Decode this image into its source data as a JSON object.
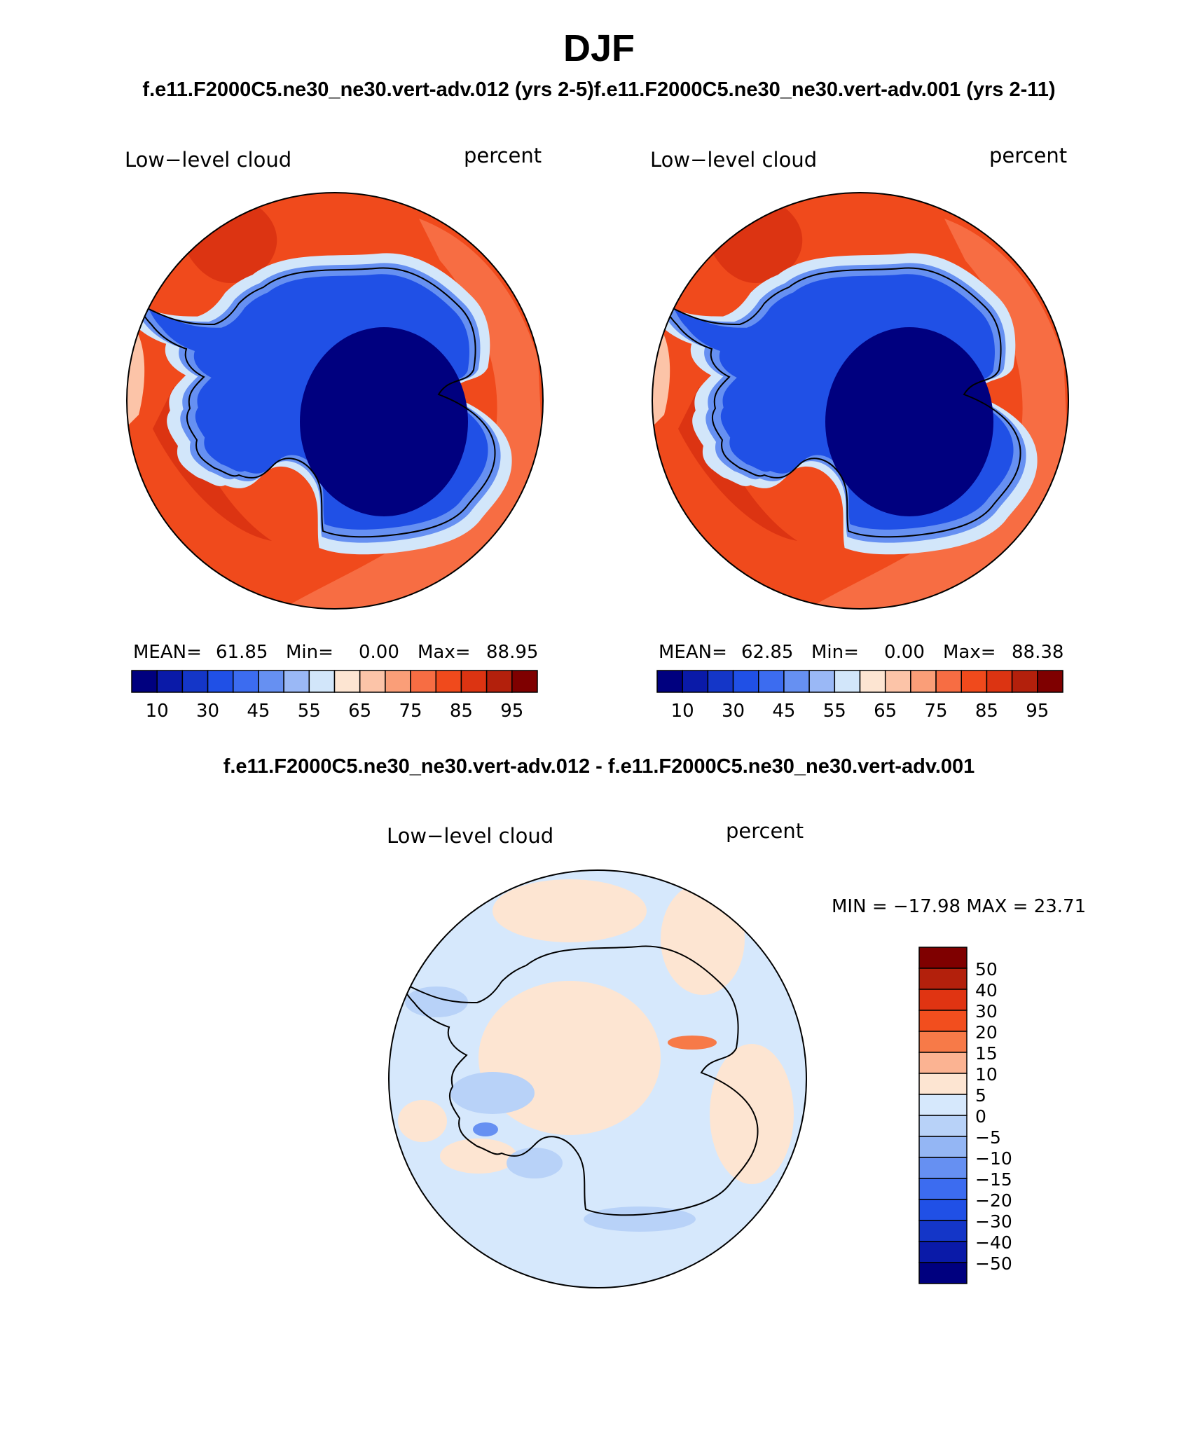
{
  "figure": {
    "title": "DJF",
    "subtitle": "f.e11.F2000C5.ne30_ne30.vert-adv.012 (yrs 2-5)f.e11.F2000C5.ne30_ne30.vert-adv.001 (yrs 2-11)",
    "difference_title": "f.e11.F2000C5.ne30_ne30.vert-adv.012 - f.e11.F2000C5.ne30_ne30.vert-adv.001"
  },
  "panels": [
    {
      "variable": "Low−level cloud",
      "units": "percent",
      "mean_label": "MEAN=",
      "mean": "61.85",
      "min_label": "Min=",
      "min": "0.00",
      "max_label": "Max=",
      "max": "88.95"
    },
    {
      "variable": "Low−level cloud",
      "units": "percent",
      "mean_label": "MEAN=",
      "mean": "62.85",
      "min_label": "Min=",
      "min": "0.00",
      "max_label": "Max=",
      "max": "88.38"
    }
  ],
  "difference_panel": {
    "variable": "Low−level cloud",
    "units": "percent",
    "minmax_text": "MIN = −17.98 MAX =  23.71"
  },
  "abs_colorbar": {
    "colors": [
      "#00007f",
      "#0a1aa8",
      "#1436c8",
      "#2050e6",
      "#3c6cf0",
      "#6690f2",
      "#9ab8f6",
      "#d2e6fa",
      "#fde5d2",
      "#fcc4a8",
      "#fa9e78",
      "#f76d43",
      "#f04a1c",
      "#dc3412",
      "#b3200c",
      "#7f0000"
    ],
    "tick_labels": [
      "10",
      "30",
      "45",
      "55",
      "65",
      "75",
      "85",
      "95"
    ]
  },
  "diff_colorbar": {
    "colors": [
      "#7f0000",
      "#b3200c",
      "#e03412",
      "#f24e1e",
      "#f77a48",
      "#fbb392",
      "#fde5d2",
      "#d6e8fc",
      "#b8d2f8",
      "#94b6f4",
      "#6690f2",
      "#3c6cf0",
      "#2050e6",
      "#1436c8",
      "#0a1aa8",
      "#00007f"
    ],
    "tick_labels": [
      "50",
      "40",
      "30",
      "20",
      "15",
      "10",
      "5",
      "0",
      "−5",
      "−10",
      "−15",
      "−20",
      "−30",
      "−40",
      "−50"
    ]
  },
  "map_colors": {
    "ocean_deep": "#f04a1c",
    "ocean_mid": "#f76d43",
    "ocean_dark": "#dc3412",
    "coast_light": "#fcc4a8",
    "ice_deep": "#00007f",
    "ice_blue": "#2050e6",
    "ice_light": "#6690f2",
    "diff_base": "#d6e8fc",
    "diff_pos": "#fde5d2",
    "diff_neg": "#b8d2f8"
  }
}
